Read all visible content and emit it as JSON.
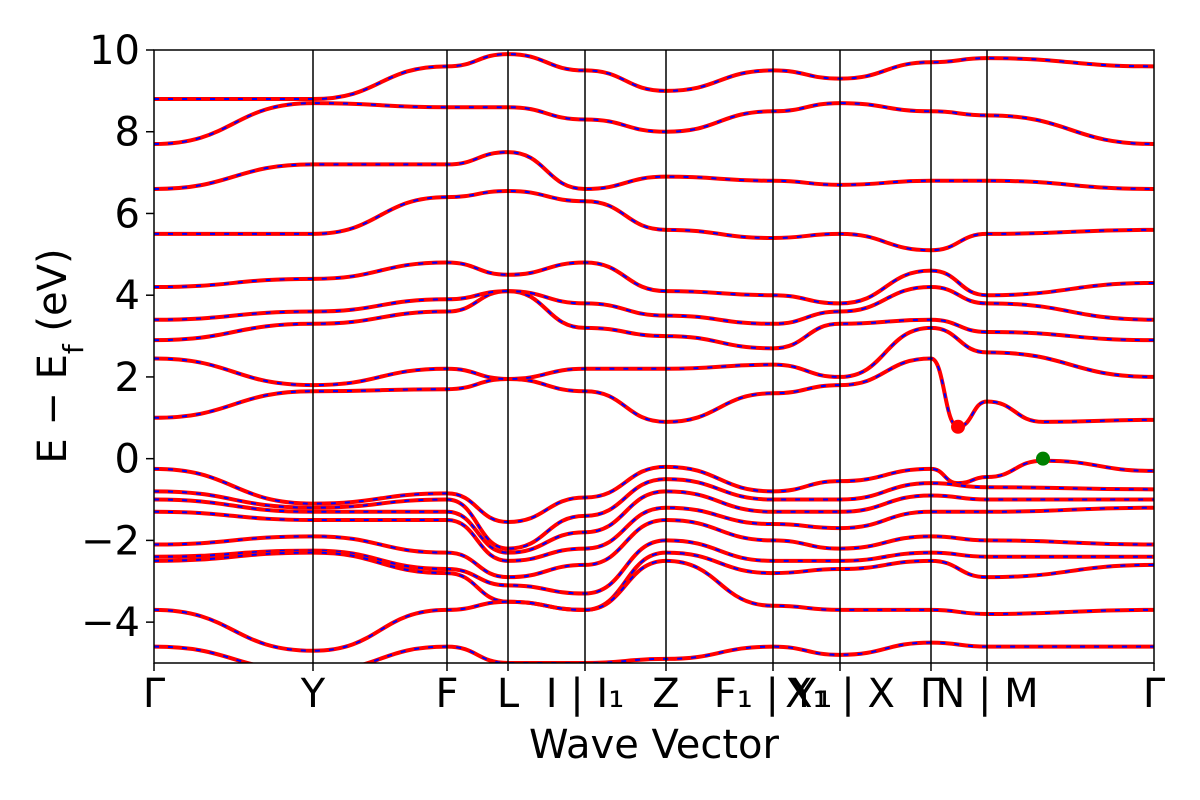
{
  "chart_data": {
    "type": "line",
    "xlabel": "Wave Vector",
    "ylabel": "E − E_f (eV)",
    "ylabel_main": "E − E",
    "ylabel_sub": "f",
    "ylabel_unit": " (eV)",
    "ylim": [
      -5,
      10
    ],
    "yticks": [
      "−4",
      "−2",
      "0",
      "2",
      "4",
      "6",
      "8",
      "10"
    ],
    "ytick_values": [
      -4,
      -2,
      0,
      2,
      4,
      6,
      8,
      10
    ],
    "grid": false,
    "kpoints": [
      {
        "label": "Γ",
        "x": 0.0
      },
      {
        "label": "Y",
        "x": 0.159
      },
      {
        "label": "F",
        "x": 0.293
      },
      {
        "label": "L",
        "x": 0.354
      },
      {
        "label": "I | I₁",
        "x": 0.431
      },
      {
        "label": "Z",
        "x": 0.512
      },
      {
        "label": "F₁ | Y₁",
        "x": 0.619
      },
      {
        "label": "X₁ | X",
        "x": 0.686
      },
      {
        "label": "Γ",
        "x": 0.777
      },
      {
        "label": "N | M",
        "x": 0.833
      },
      {
        "label": "Γ",
        "x": 1.0
      }
    ],
    "band_colors": {
      "primary": "#ff0000",
      "secondary": "#0000ff"
    },
    "special_points": [
      {
        "name": "CBM",
        "x": 0.804,
        "y": 0.78,
        "color": "#ff0000"
      },
      {
        "name": "VBM",
        "x": 0.889,
        "y": 0.0,
        "color": "#008000"
      }
    ],
    "series": [
      {
        "x": [
          0,
          0.159,
          0.293,
          0.354,
          0.431,
          0.512,
          0.619,
          0.686,
          0.777,
          0.804,
          0.833,
          0.889,
          1.0
        ],
        "y": [
          -0.25,
          -1.1,
          -0.85,
          -1.55,
          -0.95,
          -0.2,
          -0.8,
          -0.55,
          -0.25,
          -0.6,
          -0.45,
          -0.05,
          -0.3
        ]
      },
      {
        "x": [
          0,
          0.159,
          0.293,
          0.354,
          0.431,
          0.512,
          0.619,
          0.686,
          0.777,
          0.833,
          1.0
        ],
        "y": [
          -0.8,
          -1.2,
          -1.0,
          -2.2,
          -1.4,
          -0.5,
          -1.0,
          -1.0,
          -0.6,
          -0.7,
          -0.75
        ]
      },
      {
        "x": [
          0,
          0.159,
          0.293,
          0.354,
          0.431,
          0.512,
          0.619,
          0.686,
          0.777,
          0.833,
          1.0
        ],
        "y": [
          -1.0,
          -1.3,
          -1.3,
          -2.3,
          -1.8,
          -0.8,
          -1.3,
          -1.3,
          -0.9,
          -1.0,
          -1.0
        ]
      },
      {
        "x": [
          0,
          0.159,
          0.293,
          0.354,
          0.431,
          0.512,
          0.619,
          0.686,
          0.777,
          0.833,
          1.0
        ],
        "y": [
          -1.3,
          -1.5,
          -1.5,
          -2.5,
          -2.2,
          -1.2,
          -1.6,
          -1.7,
          -1.3,
          -1.3,
          -1.2
        ]
      },
      {
        "x": [
          0,
          0.159,
          0.293,
          0.354,
          0.431,
          0.512,
          0.619,
          0.686,
          0.777,
          0.833,
          1.0
        ],
        "y": [
          -2.1,
          -1.9,
          -2.3,
          -2.9,
          -2.6,
          -1.5,
          -2.0,
          -2.2,
          -1.9,
          -2.0,
          -2.1
        ]
      },
      {
        "x": [
          0,
          0.159,
          0.293,
          0.354,
          0.431,
          0.512,
          0.619,
          0.686,
          0.777,
          0.833,
          1.0
        ],
        "y": [
          -2.4,
          -2.25,
          -2.7,
          -3.1,
          -3.3,
          -2.0,
          -2.5,
          -2.5,
          -2.3,
          -2.4,
          -2.4
        ]
      },
      {
        "x": [
          0,
          0.159,
          0.293,
          0.354,
          0.431,
          0.512,
          0.619,
          0.686,
          0.777,
          0.833,
          1.0
        ],
        "y": [
          -2.5,
          -2.3,
          -2.8,
          -3.5,
          -3.7,
          -2.3,
          -2.8,
          -2.7,
          -2.5,
          -2.9,
          -2.6
        ]
      },
      {
        "x": [
          0,
          0.159,
          0.293,
          0.354,
          0.431,
          0.512,
          0.619,
          0.686,
          0.777,
          0.833,
          1.0
        ],
        "y": [
          -3.7,
          -4.7,
          -3.7,
          -3.5,
          -3.7,
          -2.5,
          -3.6,
          -3.7,
          -3.7,
          -3.8,
          -3.7
        ]
      },
      {
        "x": [
          0,
          0.159,
          0.293,
          0.354,
          0.431,
          0.512,
          0.619,
          0.686,
          0.777,
          0.833,
          1.0
        ],
        "y": [
          -4.6,
          -5.2,
          -4.6,
          -5.0,
          -5.0,
          -4.9,
          -4.6,
          -4.8,
          -4.5,
          -4.6,
          -4.6
        ]
      },
      {
        "x": [
          0,
          0.159,
          0.293,
          0.354,
          0.431,
          0.512,
          0.619,
          0.686,
          0.777,
          0.804,
          0.833,
          0.889,
          1.0
        ],
        "y": [
          1.0,
          1.65,
          1.7,
          1.95,
          1.65,
          0.9,
          1.6,
          1.8,
          2.45,
          0.78,
          1.4,
          0.9,
          0.95
        ]
      },
      {
        "x": [
          0,
          0.159,
          0.293,
          0.354,
          0.431,
          0.512,
          0.619,
          0.686,
          0.777,
          0.833,
          1.0
        ],
        "y": [
          2.45,
          1.8,
          2.2,
          1.95,
          2.2,
          2.2,
          2.3,
          2.0,
          3.2,
          2.6,
          2.0
        ]
      },
      {
        "x": [
          0,
          0.159,
          0.293,
          0.354,
          0.431,
          0.512,
          0.619,
          0.686,
          0.777,
          0.833,
          1.0
        ],
        "y": [
          2.9,
          3.3,
          3.6,
          4.1,
          3.2,
          3.0,
          2.7,
          3.3,
          3.4,
          3.1,
          2.9
        ]
      },
      {
        "x": [
          0,
          0.159,
          0.293,
          0.354,
          0.431,
          0.512,
          0.619,
          0.686,
          0.777,
          0.833,
          1.0
        ],
        "y": [
          3.4,
          3.6,
          3.9,
          4.1,
          3.8,
          3.5,
          3.3,
          3.6,
          4.2,
          3.8,
          3.4
        ]
      },
      {
        "x": [
          0,
          0.159,
          0.293,
          0.354,
          0.431,
          0.512,
          0.619,
          0.686,
          0.777,
          0.833,
          1.0
        ],
        "y": [
          4.2,
          4.4,
          4.8,
          4.5,
          4.8,
          4.1,
          4.0,
          3.8,
          4.6,
          4.0,
          4.3
        ]
      },
      {
        "x": [
          0,
          0.159,
          0.293,
          0.354,
          0.431,
          0.512,
          0.619,
          0.686,
          0.777,
          0.833,
          1.0
        ],
        "y": [
          5.5,
          5.5,
          6.4,
          6.55,
          6.3,
          5.6,
          5.4,
          5.5,
          5.1,
          5.5,
          5.6
        ]
      },
      {
        "x": [
          0,
          0.159,
          0.293,
          0.354,
          0.431,
          0.512,
          0.619,
          0.686,
          0.777,
          0.833,
          1.0
        ],
        "y": [
          6.6,
          7.2,
          7.2,
          7.5,
          6.6,
          6.9,
          6.8,
          6.7,
          6.8,
          6.8,
          6.6
        ]
      },
      {
        "x": [
          0,
          0.159,
          0.293,
          0.354,
          0.431,
          0.512,
          0.619,
          0.686,
          0.777,
          0.833,
          1.0
        ],
        "y": [
          7.7,
          8.7,
          8.6,
          8.6,
          8.3,
          8.0,
          8.5,
          8.7,
          8.5,
          8.4,
          7.7
        ]
      },
      {
        "x": [
          0,
          0.159,
          0.293,
          0.354,
          0.431,
          0.512,
          0.619,
          0.686,
          0.777,
          0.833,
          1.0
        ],
        "y": [
          8.8,
          8.8,
          9.6,
          9.9,
          9.5,
          9.0,
          9.5,
          9.3,
          9.7,
          9.8,
          9.6
        ]
      }
    ]
  }
}
